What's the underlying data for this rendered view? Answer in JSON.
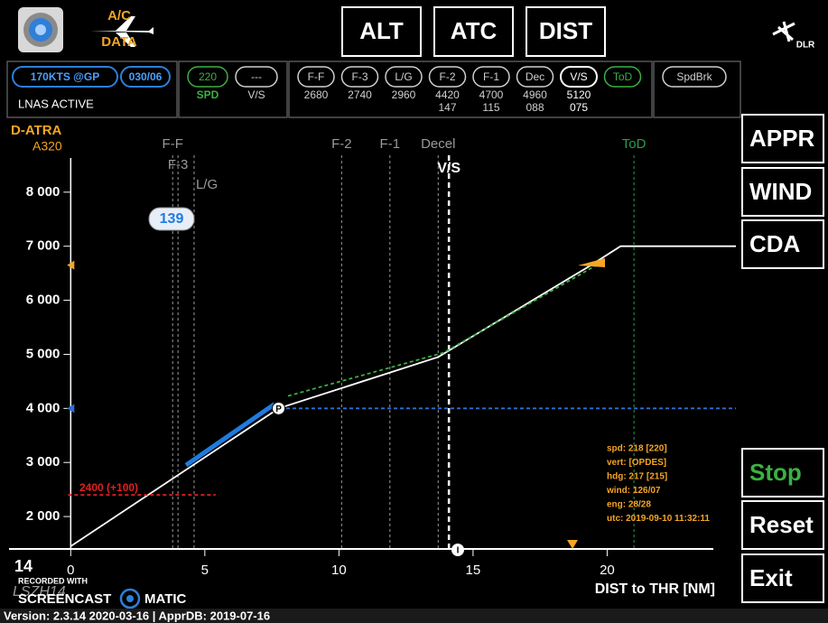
{
  "header": {
    "ac_label": "A/C",
    "data_label": "DATA",
    "buttons": [
      "ALT",
      "ATC",
      "DIST"
    ],
    "logo": "DLR"
  },
  "status": {
    "speed_mode": "170KTS @GP",
    "wind": "030/06",
    "lnas": "LNAS ACTIVE",
    "spd": {
      "value": "220",
      "label": "SPD"
    },
    "vs": {
      "value": "---",
      "label": "V/S"
    },
    "fixes": [
      {
        "name": "F-F",
        "alt": "2680"
      },
      {
        "name": "F-3",
        "alt": "2740"
      },
      {
        "name": "L/G",
        "alt": "2960"
      },
      {
        "name": "F-2",
        "alt": "4420",
        "sub": "147"
      },
      {
        "name": "F-1",
        "alt": "4700",
        "sub": "115"
      },
      {
        "name": "Dec",
        "alt": "4960",
        "sub": "088"
      },
      {
        "name": "V/S",
        "alt": "5120",
        "sub": "075"
      },
      {
        "name": "ToD"
      }
    ],
    "speedbrake": "SpdBrk"
  },
  "side_buttons": [
    "APPR",
    "WIND",
    "CDA",
    "Stop",
    "Reset",
    "Exit"
  ],
  "chart_data": {
    "type": "line",
    "aircraft": "D-ATRA",
    "model": "A320",
    "xlabel": "DIST to THR [NM]",
    "xlim": [
      -2.3,
      24.8
    ],
    "ylim": [
      1400,
      9300
    ],
    "xticks": [
      0,
      5,
      10,
      15,
      20
    ],
    "yticks": [
      {
        "value": 2000,
        "label": "2 000"
      },
      {
        "value": 3000,
        "label": "3 000"
      },
      {
        "value": 4000,
        "label": "4 000"
      },
      {
        "value": 5000,
        "label": "5 000"
      },
      {
        "value": 6000,
        "label": "6 000"
      },
      {
        "value": 7000,
        "label": "7 000"
      },
      {
        "value": 8000,
        "label": "8 000"
      }
    ],
    "series": [
      {
        "color": "#ffffff",
        "style": "solid",
        "x": [
          0,
          7.75,
          13.7,
          19.3,
          20.5,
          24.8
        ],
        "values": [
          1450,
          4000,
          4950,
          6620,
          7000,
          7000
        ]
      },
      {
        "color": "#3cb043",
        "style": "dashed",
        "x": [
          8.1,
          13.9,
          19.6
        ],
        "values": [
          4230,
          5030,
          6650
        ]
      },
      {
        "color": "#2a6fd6",
        "style": "dashed",
        "x": [
          7.8,
          24.8
        ],
        "values": [
          4000,
          4000
        ]
      },
      {
        "color": "#e02020",
        "style": "dashed",
        "x": [
          -0.1,
          5.4
        ],
        "values": [
          2400,
          2400
        ]
      },
      {
        "color": "#1e7be0",
        "style": "thick",
        "x": [
          4.3,
          7.6
        ],
        "values": [
          2950,
          4080
        ]
      }
    ],
    "markers": [
      {
        "label": "F-F",
        "x": 3.8,
        "color": "#9a9a9a"
      },
      {
        "label": "F-3",
        "x": 4.0,
        "color": "#9a9a9a"
      },
      {
        "label": "L/G",
        "x": 4.6,
        "color": "#9a9a9a"
      },
      {
        "label": "F-2",
        "x": 10.1,
        "color": "#9a9a9a"
      },
      {
        "label": "F-1",
        "x": 11.9,
        "color": "#9a9a9a"
      },
      {
        "label": "Decel",
        "x": 13.7,
        "color": "#9a9a9a"
      },
      {
        "label": "V/S",
        "x": 14.1,
        "color": "#ffffff"
      },
      {
        "label": "ToD",
        "x": 21.0,
        "color": "#2e9b4e"
      }
    ],
    "indicators": [
      {
        "value": 6650,
        "color": "#f5a623"
      },
      {
        "value": 4000,
        "color": "#2a6fd6"
      }
    ],
    "point_labels": [
      "P",
      "I"
    ],
    "speed_bubble": "139",
    "target_label": "2400  (+100)",
    "runway": "14",
    "runway_watermark": "LSZH14",
    "info": [
      "spd: 218 [220]",
      "vert: [OPDES]",
      "hdg: 217 [215]",
      "wind: 126/07",
      "eng: 28/28",
      "utc: 2019-09-10 11:32:11"
    ]
  },
  "watermark": [
    "RECORDED WITH",
    "SCREENCAST",
    "MATIC"
  ],
  "footer": "Version: 2.3.14 2020-03-16 | ApprDB: 2019-07-16"
}
